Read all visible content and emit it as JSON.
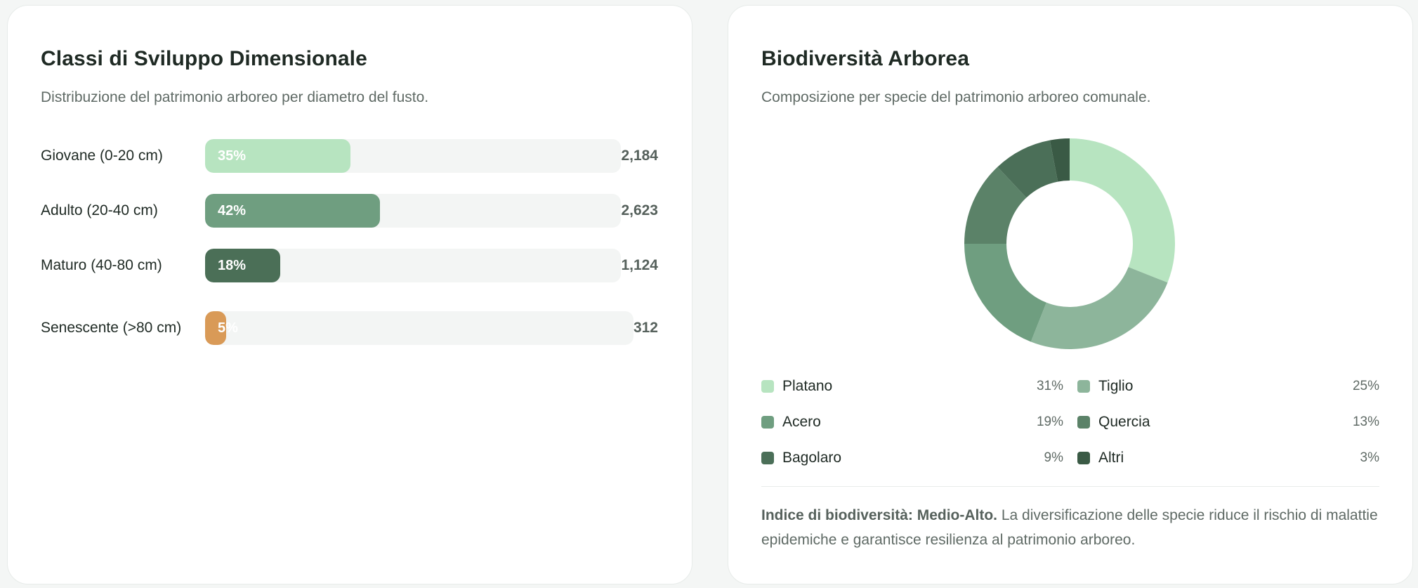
{
  "size_classes": {
    "title": "Classi di Sviluppo Dimensionale",
    "subtitle": "Distribuzione del patrimonio arboreo per diametro del fusto.",
    "rows": [
      {
        "label": "Giovane (0-20 cm)",
        "percent": 35,
        "percent_label": "35%",
        "count": "2,184",
        "color": "#b7e4c0"
      },
      {
        "label": "Adulto (20-40 cm)",
        "percent": 42,
        "percent_label": "42%",
        "count": "2,623",
        "color": "#6f9e80"
      },
      {
        "label": "Maturo (40-80 cm)",
        "percent": 18,
        "percent_label": "18%",
        "count": "1,124",
        "color": "#4b6f57"
      },
      {
        "label": "Senescente (>80 cm)",
        "percent": 5,
        "percent_label": "5%",
        "count": "312",
        "color": "#d99a57"
      }
    ]
  },
  "biodiversity": {
    "title": "Biodiversità Arborea",
    "subtitle": "Composizione per specie del patrimonio arboreo comunale.",
    "legend": [
      {
        "label": "Platano",
        "percent": 31,
        "percent_label": "31%",
        "color": "#b7e4c0"
      },
      {
        "label": "Tiglio",
        "percent": 25,
        "percent_label": "25%",
        "color": "#8db59b"
      },
      {
        "label": "Acero",
        "percent": 19,
        "percent_label": "19%",
        "color": "#6f9e80"
      },
      {
        "label": "Quercia",
        "percent": 13,
        "percent_label": "13%",
        "color": "#5b8268"
      },
      {
        "label": "Bagolaro",
        "percent": 9,
        "percent_label": "9%",
        "color": "#4b6f58"
      },
      {
        "label": "Altri",
        "percent": 3,
        "percent_label": "3%",
        "color": "#3a5a45"
      }
    ],
    "note_bold": "Indice di biodiversità: Medio-Alto.",
    "note_text": " La diversificazione delle specie riduce il rischio di malattie epidemiche e garantisce resilienza al patrimonio arboreo."
  },
  "chart_data": [
    {
      "type": "bar",
      "orientation": "horizontal",
      "title": "Classi di Sviluppo Dimensionale",
      "subtitle": "Distribuzione del patrimonio arboreo per diametro del fusto.",
      "categories": [
        "Giovane (0-20 cm)",
        "Adulto (20-40 cm)",
        "Maturo (40-80 cm)",
        "Senescente (>80 cm)"
      ],
      "values": [
        35,
        42,
        18,
        5
      ],
      "unit": "%",
      "counts": [
        2184,
        2623,
        1124,
        312
      ],
      "xlim": [
        0,
        100
      ],
      "grid": false,
      "legend": "none"
    },
    {
      "type": "pie",
      "variant": "donut",
      "title": "Biodiversità Arborea",
      "subtitle": "Composizione per specie del patrimonio arboreo comunale.",
      "categories": [
        "Platano",
        "Tiglio",
        "Acero",
        "Quercia",
        "Bagolaro",
        "Altri"
      ],
      "values": [
        31,
        25,
        19,
        13,
        9,
        3
      ],
      "unit": "%",
      "start_angle": "12 o'clock, clockwise",
      "legend_position": "bottom, 2 columns"
    }
  ]
}
